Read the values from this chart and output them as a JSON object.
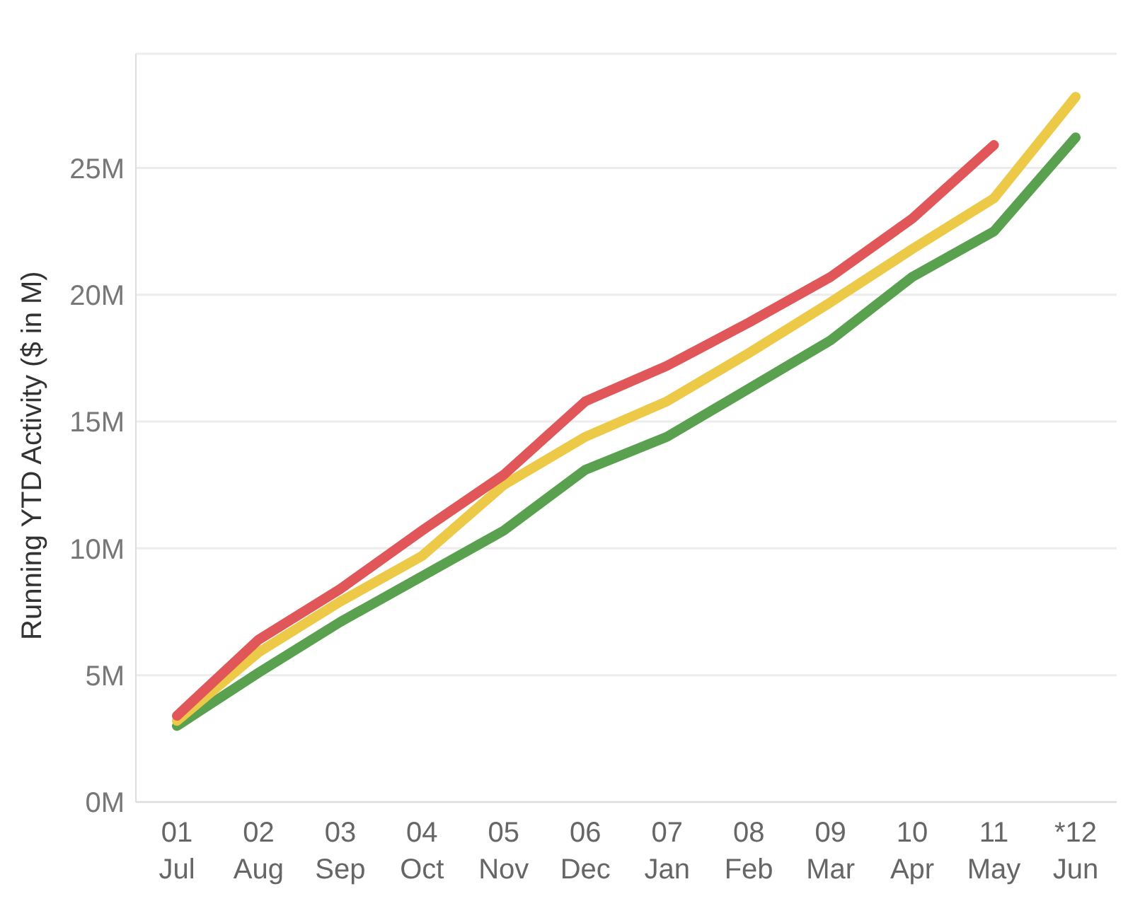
{
  "chart_data": {
    "type": "line",
    "ylabel": "Running YTD Activity ($ in M)",
    "categories": [
      "01\nJul",
      "02\nAug",
      "03\nSep",
      "04\nOct",
      "05\nNov",
      "06\nDec",
      "07\nJan",
      "08\nFeb",
      "09\nMar",
      "10\nApr",
      "11\nMay",
      "*12\nJun"
    ],
    "series": [
      {
        "color": "#59a14f",
        "values": [
          3.0,
          5.1,
          7.1,
          8.9,
          10.7,
          13.1,
          14.4,
          16.3,
          18.2,
          20.7,
          22.5,
          26.2
        ]
      },
      {
        "color": "#edc948",
        "values": [
          3.2,
          5.9,
          7.9,
          9.7,
          12.5,
          14.4,
          15.8,
          17.7,
          19.7,
          21.8,
          23.8,
          27.8
        ]
      },
      {
        "color": "#e15759",
        "values": [
          3.4,
          6.4,
          8.4,
          10.7,
          12.9,
          15.8,
          17.2,
          18.9,
          20.7,
          23.0,
          25.9,
          null
        ]
      }
    ],
    "ylim": [
      0,
      29.5
    ],
    "yticks": [
      {
        "value": 0,
        "label": "0M"
      },
      {
        "value": 5,
        "label": "5M"
      },
      {
        "value": 10,
        "label": "10M"
      },
      {
        "value": 15,
        "label": "15M"
      },
      {
        "value": 20,
        "label": "20M"
      },
      {
        "value": 25,
        "label": "25M"
      }
    ],
    "grid": "y",
    "legend": false,
    "marker": "none",
    "line_style": "solid"
  }
}
